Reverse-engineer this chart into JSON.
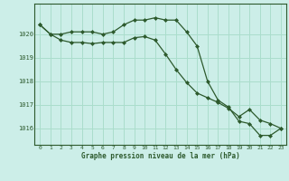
{
  "title": "Graphe pression niveau de la mer (hPa)",
  "bg_color": "#cceee8",
  "grid_color": "#aaddcc",
  "line_color": "#2d5a2d",
  "marker_color": "#2d5a2d",
  "xlim": [
    -0.5,
    23.5
  ],
  "ylim": [
    1015.3,
    1021.3
  ],
  "yticks": [
    1016,
    1017,
    1018,
    1019,
    1020
  ],
  "xticks": [
    0,
    1,
    2,
    3,
    4,
    5,
    6,
    7,
    8,
    9,
    10,
    11,
    12,
    13,
    14,
    15,
    16,
    17,
    18,
    19,
    20,
    21,
    22,
    23
  ],
  "series1": [
    1020.4,
    1020.0,
    1020.0,
    1020.1,
    1020.1,
    1020.1,
    1020.0,
    1020.1,
    1020.4,
    1020.6,
    1020.6,
    1020.7,
    1020.6,
    1020.6,
    1020.1,
    1019.5,
    1018.0,
    1017.2,
    1016.9,
    1016.3,
    1016.2,
    1015.7,
    1015.7,
    1016.0
  ],
  "series2": [
    1020.4,
    1020.0,
    1019.75,
    1019.65,
    1019.65,
    1019.6,
    1019.65,
    1019.65,
    1019.65,
    1019.85,
    1019.9,
    1019.75,
    1019.15,
    1018.5,
    1017.95,
    1017.5,
    1017.3,
    1017.1,
    1016.85,
    1016.5,
    1016.8,
    1016.35,
    1016.2,
    1016.0
  ]
}
